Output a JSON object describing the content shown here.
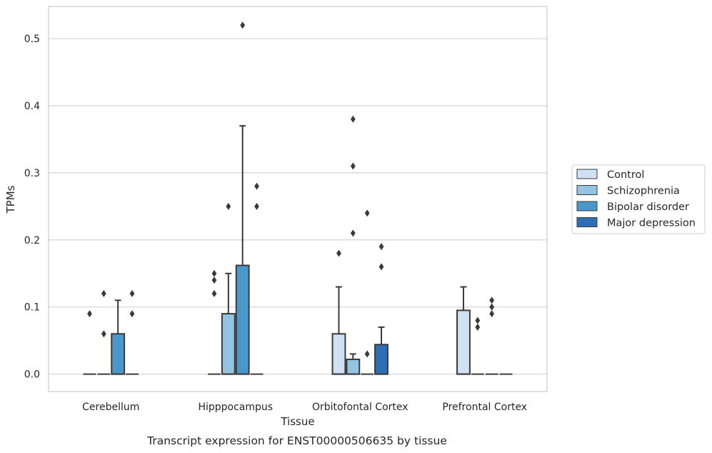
{
  "chart_data": {
    "type": "box",
    "caption": "Transcript expression for ENST00000506635 by tissue",
    "xlabel": "Tissue",
    "ylabel": "TPMs",
    "ylim": [
      -0.026,
      0.548
    ],
    "yticks": [
      0.0,
      0.1,
      0.2,
      0.3,
      0.4,
      0.5
    ],
    "ytick_labels": [
      "0.0",
      "0.1",
      "0.2",
      "0.3",
      "0.4",
      "0.5"
    ],
    "grid": "horizontal",
    "legend_position": "right",
    "categories": [
      "Cerebellum",
      "Hipppocampus",
      "Orbitofontal Cortex",
      "Prefrontal Cortex"
    ],
    "series": [
      {
        "name": "Control",
        "color": "#d0e1f2",
        "boxes": [
          {
            "q1": 0,
            "median": 0,
            "q3": 0,
            "whisker_low": 0,
            "whisker_high": 0,
            "outliers": [
              0.09
            ]
          },
          {
            "q1": 0,
            "median": 0,
            "q3": 0,
            "whisker_low": 0,
            "whisker_high": 0,
            "outliers": [
              0.12,
              0.14,
              0.15
            ]
          },
          {
            "q1": 0,
            "median": 0,
            "q3": 0.06,
            "whisker_low": 0,
            "whisker_high": 0.13,
            "outliers": [
              0.18
            ]
          },
          {
            "q1": 0,
            "median": 0,
            "q3": 0.095,
            "whisker_low": 0,
            "whisker_high": 0.13,
            "outliers": []
          }
        ]
      },
      {
        "name": "Schizophrenia",
        "color": "#94c4df",
        "boxes": [
          {
            "q1": 0,
            "median": 0,
            "q3": 0,
            "whisker_low": 0,
            "whisker_high": 0,
            "outliers": [
              0.06,
              0.12
            ]
          },
          {
            "q1": 0,
            "median": 0,
            "q3": 0.09,
            "whisker_low": 0,
            "whisker_high": 0.15,
            "outliers": [
              0.25
            ]
          },
          {
            "q1": 0,
            "median": 0,
            "q3": 0.022,
            "whisker_low": 0,
            "whisker_high": 0.03,
            "outliers": [
              0.21,
              0.31,
              0.38
            ]
          },
          {
            "q1": 0,
            "median": 0,
            "q3": 0,
            "whisker_low": 0,
            "whisker_high": 0,
            "outliers": [
              0.07,
              0.08
            ]
          }
        ]
      },
      {
        "name": "Bipolar disorder",
        "color": "#4a98c9",
        "boxes": [
          {
            "q1": 0,
            "median": 0,
            "q3": 0.06,
            "whisker_low": 0,
            "whisker_high": 0.11,
            "outliers": []
          },
          {
            "q1": 0,
            "median": 0,
            "q3": 0.162,
            "whisker_low": 0,
            "whisker_high": 0.37,
            "outliers": [
              0.52
            ]
          },
          {
            "q1": 0,
            "median": 0,
            "q3": 0,
            "whisker_low": 0,
            "whisker_high": 0,
            "outliers": [
              0.03,
              0.24
            ]
          },
          {
            "q1": 0,
            "median": 0,
            "q3": 0,
            "whisker_low": 0,
            "whisker_high": 0,
            "outliers": [
              0.09,
              0.1,
              0.11
            ]
          }
        ]
      },
      {
        "name": "Major depression",
        "color": "#2e6eb5",
        "boxes": [
          {
            "q1": 0,
            "median": 0,
            "q3": 0,
            "whisker_low": 0,
            "whisker_high": 0,
            "outliers": [
              0.09,
              0.12
            ]
          },
          {
            "q1": 0,
            "median": 0,
            "q3": 0,
            "whisker_low": 0,
            "whisker_high": 0,
            "outliers": [
              0.25,
              0.28
            ]
          },
          {
            "q1": 0,
            "median": 0,
            "q3": 0.044,
            "whisker_low": 0,
            "whisker_high": 0.07,
            "outliers": [
              0.16,
              0.19
            ]
          },
          {
            "q1": 0,
            "median": 0,
            "q3": 0,
            "whisker_low": 0,
            "whisker_high": 0,
            "outliers": []
          }
        ]
      }
    ]
  }
}
